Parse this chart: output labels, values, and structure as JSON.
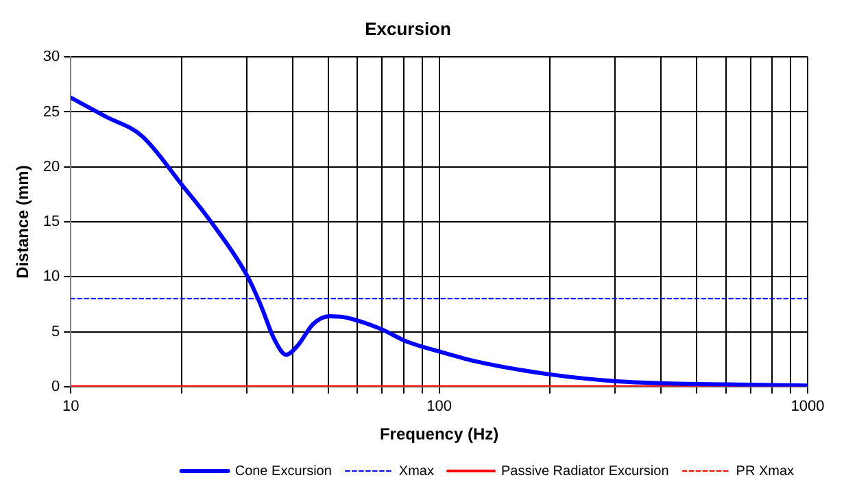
{
  "chart_data": {
    "type": "line",
    "title": "Excursion",
    "xlabel": "Frequency (Hz)",
    "ylabel": "Distance (mm)",
    "log": "x",
    "xlim": [
      10,
      1000
    ],
    "ylim": [
      0,
      30
    ],
    "xticks": [
      10,
      {
        "value": 20,
        "label": null
      },
      {
        "value": 30,
        "label": null
      },
      {
        "value": 40,
        "label": null
      },
      {
        "value": 50,
        "label": null
      },
      {
        "value": 60,
        "label": null
      },
      {
        "value": 70,
        "label": null
      },
      {
        "value": 80,
        "label": null
      },
      {
        "value": 90,
        "label": null
      },
      100,
      {
        "value": 200,
        "label": null
      },
      {
        "value": 300,
        "label": null
      },
      {
        "value": 400,
        "label": null
      },
      {
        "value": 500,
        "label": null
      },
      {
        "value": 600,
        "label": null
      },
      {
        "value": 700,
        "label": null
      },
      {
        "value": 800,
        "label": null
      },
      {
        "value": 900,
        "label": null
      },
      1000
    ],
    "yticks": [
      0,
      5,
      10,
      15,
      20,
      25,
      30
    ],
    "grid": true,
    "legend": "bottom",
    "marker": "none",
    "series": [
      {
        "name": "Cone Excursion",
        "color": "#0000ff",
        "line_style": "solid",
        "x": [
          10,
          12.4,
          15.6,
          20.1,
          23.9,
          30.1,
          32.7,
          35.7,
          38.4,
          41.2,
          45.5,
          50.3,
          55.6,
          68.9,
          81.7,
          100,
          125.6,
          201,
          300,
          405,
          603,
          1000
        ],
        "values": [
          26.3,
          24.6,
          22.8,
          18.3,
          15.1,
          10.1,
          7.5,
          4.3,
          2.9,
          3.7,
          5.7,
          6.4,
          6.3,
          5.3,
          4.1,
          3.2,
          2.3,
          1.1,
          0.5,
          0.3,
          0.2,
          0.1
        ]
      },
      {
        "name": "Xmax",
        "color": "#0000ff",
        "line_style": "dashed",
        "x": [
          10,
          1000
        ],
        "values": [
          8,
          8
        ]
      },
      {
        "name": "Passive Radiator Excursion",
        "color": "#ff0000",
        "line_style": "solid",
        "x": [
          10,
          1000
        ],
        "values": [
          0,
          0
        ]
      },
      {
        "name": "PR Xmax",
        "color": "#ff0000",
        "line_style": "dashed"
      }
    ]
  }
}
